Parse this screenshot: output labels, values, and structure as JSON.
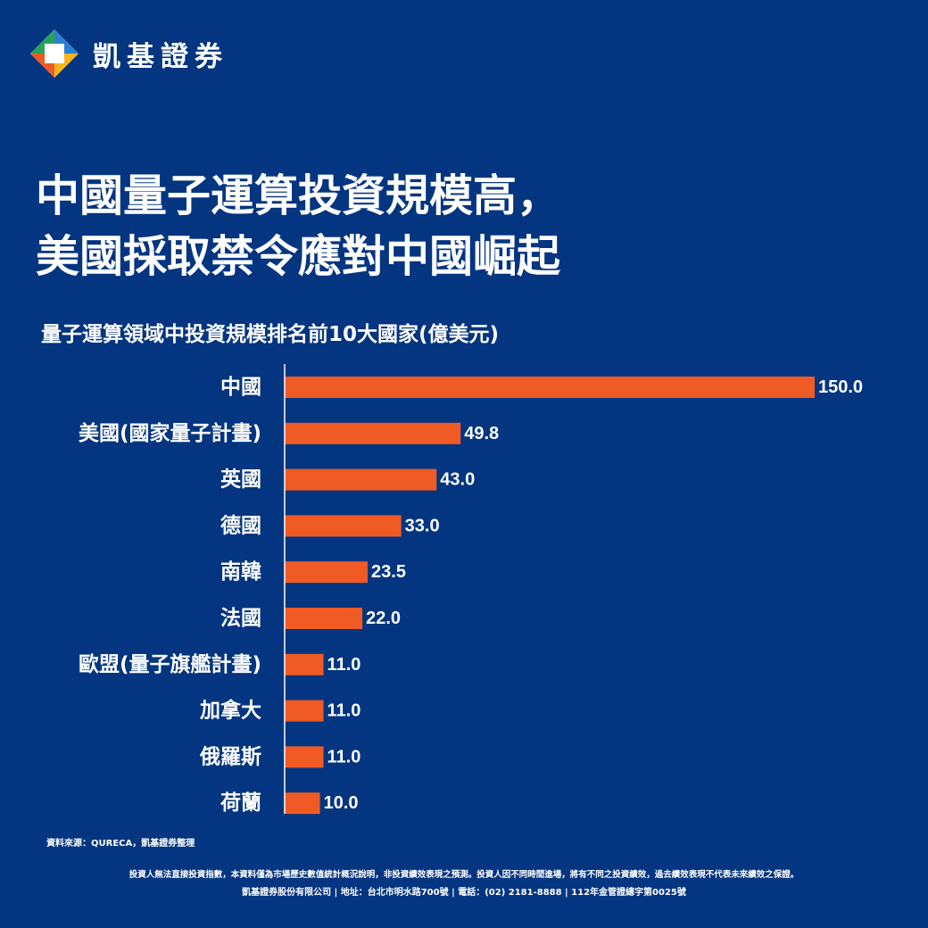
{
  "brand": {
    "name": "凱基證券"
  },
  "headline": {
    "line1": "中國量子運算投資規模高，",
    "line2": "美國採取禁令應對中國崛起"
  },
  "colors": {
    "background": "#033580",
    "bar": "#f05a24",
    "text": "#ffffff"
  },
  "chart_data": {
    "type": "bar",
    "orientation": "horizontal",
    "title": "量子運算領域中投資規模排名前10大國家(億美元)",
    "categories": [
      "中國",
      "美國(國家量子計畫)",
      "英國",
      "德國",
      "南韓",
      "法國",
      "歐盟(量子旗艦計畫)",
      "加拿大",
      "俄羅斯",
      "荷蘭"
    ],
    "values": [
      150.0,
      49.8,
      43.0,
      33.0,
      23.5,
      22.0,
      11.0,
      11.0,
      11.0,
      10.0
    ],
    "value_labels": [
      "150.0",
      "49.8",
      "43.0",
      "33.0",
      "23.5",
      "22.0",
      "11.0",
      "11.0",
      "11.0",
      "10.0"
    ],
    "xlim": [
      0,
      150
    ],
    "grid": false,
    "legend": "none"
  },
  "source": "資料來源：QURECA，凱基證券整理",
  "footer": {
    "line1": "投資人無法直接投資指數，本資料僅為市場歷史數值統計概況說明，非投資績效表現之預測。投資人因不同時間進場，將有不同之投資績效，過去績效表現不代表未來績效之保證。",
    "line2": "凱基證券股份有限公司 | 地址：台北市明水路700號 | 電話：(02) 2181-8888 | 112年金管證總字第0025號"
  }
}
